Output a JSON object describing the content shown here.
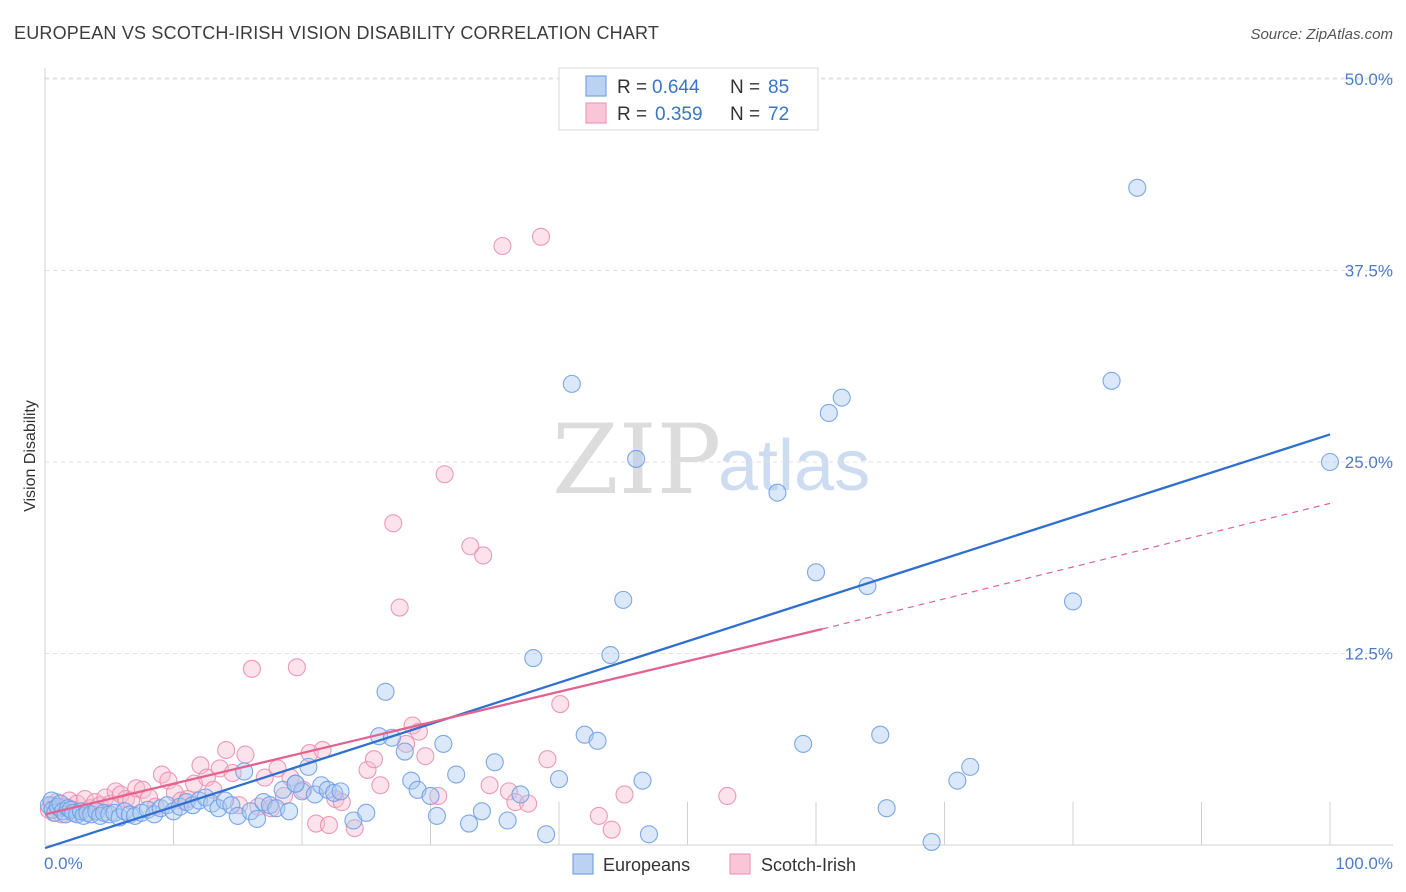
{
  "chart_data": {
    "type": "scatter",
    "title": "EUROPEAN VS SCOTCH-IRISH VISION DISABILITY CORRELATION CHART",
    "source": "Source: ZipAtlas.com",
    "ylabel": "Vision Disability",
    "xlim": [
      0,
      100
    ],
    "ylim": [
      0,
      50
    ],
    "y_ticks": [
      12.5,
      25.0,
      37.5,
      50.0
    ],
    "y_tick_labels": [
      "12.5%",
      "25.0%",
      "37.5%",
      "50.0%"
    ],
    "x_tick_labels": [
      "0.0%",
      "100.0%"
    ],
    "grid": true,
    "legend_position": "top-center",
    "watermark": {
      "zip": "ZIP",
      "atlas": "atlas"
    },
    "series": [
      {
        "name": "Europeans",
        "color": "#6f9fe6",
        "line_color": "#2f6fcf",
        "stats": {
          "r_label": "R =",
          "r_value": "0.644",
          "n_label": "N =",
          "n_value": "85"
        },
        "trend": {
          "x": [
            0,
            100
          ],
          "y": [
            -0.2,
            26.8
          ],
          "extrapolated": false
        },
        "points": [
          [
            0.3,
            2.6
          ],
          [
            0.5,
            2.9
          ],
          [
            0.6,
            2.3
          ],
          [
            0.8,
            2.1
          ],
          [
            1.0,
            2.5
          ],
          [
            1.2,
            2.7
          ],
          [
            1.4,
            2.2
          ],
          [
            1.6,
            2.0
          ],
          [
            1.8,
            2.4
          ],
          [
            2.0,
            2.3
          ],
          [
            2.2,
            2.1
          ],
          [
            2.5,
            2.0
          ],
          [
            2.8,
            2.2
          ],
          [
            3.0,
            1.9
          ],
          [
            3.3,
            2.1
          ],
          [
            3.6,
            2.0
          ],
          [
            4.0,
            2.2
          ],
          [
            4.3,
            1.9
          ],
          [
            4.6,
            2.1
          ],
          [
            5.0,
            2.0
          ],
          [
            5.4,
            2.1
          ],
          [
            5.8,
            1.8
          ],
          [
            6.2,
            2.2
          ],
          [
            6.6,
            2.0
          ],
          [
            7.0,
            1.9
          ],
          [
            7.5,
            2.1
          ],
          [
            8.0,
            2.3
          ],
          [
            8.5,
            2.0
          ],
          [
            9.0,
            2.4
          ],
          [
            9.5,
            2.6
          ],
          [
            10,
            2.2
          ],
          [
            10.5,
            2.5
          ],
          [
            11,
            2.8
          ],
          [
            11.5,
            2.6
          ],
          [
            12,
            2.9
          ],
          [
            12.5,
            3.1
          ],
          [
            13,
            2.7
          ],
          [
            13.5,
            2.4
          ],
          [
            14,
            2.9
          ],
          [
            14.5,
            2.6
          ],
          [
            15,
            1.9
          ],
          [
            15.5,
            4.8
          ],
          [
            16,
            2.2
          ],
          [
            16.5,
            1.7
          ],
          [
            17,
            2.8
          ],
          [
            17.5,
            2.6
          ],
          [
            18,
            2.4
          ],
          [
            18.5,
            3.6
          ],
          [
            19,
            2.2
          ],
          [
            19.5,
            4.0
          ],
          [
            20,
            3.5
          ],
          [
            20.5,
            5.1
          ],
          [
            21,
            3.3
          ],
          [
            21.5,
            3.9
          ],
          [
            22,
            3.6
          ],
          [
            22.5,
            3.4
          ],
          [
            23,
            3.5
          ],
          [
            24,
            1.6
          ],
          [
            25,
            2.1
          ],
          [
            19.5,
            4.0
          ],
          [
            26,
            7.1
          ],
          [
            26.5,
            10.0
          ],
          [
            27,
            7.0
          ],
          [
            28,
            6.1
          ],
          [
            28.5,
            4.2
          ],
          [
            29,
            3.6
          ],
          [
            30,
            3.2
          ],
          [
            30.5,
            1.9
          ],
          [
            31,
            6.6
          ],
          [
            32,
            4.6
          ],
          [
            33,
            1.4
          ],
          [
            34,
            2.2
          ],
          [
            35,
            5.4
          ],
          [
            36,
            1.6
          ],
          [
            37,
            3.3
          ],
          [
            38,
            12.2
          ],
          [
            39,
            0.7
          ],
          [
            40,
            4.3
          ],
          [
            41,
            30.1
          ],
          [
            42,
            7.2
          ],
          [
            43,
            6.8
          ],
          [
            44,
            12.4
          ],
          [
            45,
            16.0
          ],
          [
            46,
            25.2
          ],
          [
            46.5,
            4.2
          ],
          [
            47,
            0.7
          ],
          [
            57,
            23.0
          ],
          [
            59,
            6.6
          ],
          [
            60,
            17.8
          ],
          [
            61,
            28.2
          ],
          [
            62,
            29.2
          ],
          [
            64,
            16.9
          ],
          [
            65,
            7.2
          ],
          [
            65.5,
            2.4
          ],
          [
            69,
            0.2
          ],
          [
            71,
            4.2
          ],
          [
            72,
            5.1
          ],
          [
            80,
            15.9
          ],
          [
            83,
            30.3
          ],
          [
            85,
            42.9
          ],
          [
            100,
            25.0
          ]
        ]
      },
      {
        "name": "Scotch-Irish",
        "color": "#f2a0bd",
        "line_color": "#e2648e",
        "stats": {
          "r_label": "R =",
          "r_value": "0.359",
          "n_label": "N =",
          "n_value": "72"
        },
        "trend": {
          "x": [
            0,
            60.5
          ],
          "y": [
            2.0,
            14.1
          ],
          "extrapolated_to": [
            100,
            22.3
          ]
        },
        "points": [
          [
            0.3,
            2.3
          ],
          [
            0.5,
            2.6
          ],
          [
            0.7,
            2.1
          ],
          [
            0.9,
            2.8
          ],
          [
            1.1,
            2.4
          ],
          [
            1.3,
            2.0
          ],
          [
            1.6,
            2.5
          ],
          [
            1.9,
            2.9
          ],
          [
            2.2,
            2.3
          ],
          [
            2.5,
            2.7
          ],
          [
            2.8,
            2.2
          ],
          [
            3.1,
            3.0
          ],
          [
            3.5,
            2.4
          ],
          [
            3.9,
            2.8
          ],
          [
            4.3,
            2.6
          ],
          [
            4.7,
            3.1
          ],
          [
            5.1,
            2.7
          ],
          [
            5.5,
            3.5
          ],
          [
            5.9,
            3.3
          ],
          [
            6.3,
            3.0
          ],
          [
            6.7,
            2.9
          ],
          [
            7.1,
            3.7
          ],
          [
            7.6,
            3.6
          ],
          [
            8.1,
            3.1
          ],
          [
            8.6,
            2.5
          ],
          [
            9.1,
            4.6
          ],
          [
            9.6,
            4.2
          ],
          [
            10.1,
            3.4
          ],
          [
            10.6,
            2.9
          ],
          [
            11.1,
            3.0
          ],
          [
            11.6,
            4.0
          ],
          [
            12.1,
            5.2
          ],
          [
            12.6,
            4.4
          ],
          [
            13.1,
            3.6
          ],
          [
            13.6,
            5.0
          ],
          [
            14.1,
            6.2
          ],
          [
            14.6,
            4.7
          ],
          [
            15.1,
            2.6
          ],
          [
            15.6,
            5.9
          ],
          [
            16.1,
            11.5
          ],
          [
            16.6,
            2.5
          ],
          [
            17.1,
            4.4
          ],
          [
            17.6,
            2.4
          ],
          [
            18.1,
            5.0
          ],
          [
            18.6,
            3.2
          ],
          [
            19.1,
            4.4
          ],
          [
            19.6,
            11.6
          ],
          [
            20.1,
            3.6
          ],
          [
            20.6,
            6.0
          ],
          [
            21.1,
            1.4
          ],
          [
            21.6,
            6.2
          ],
          [
            22.1,
            1.3
          ],
          [
            22.6,
            3.0
          ],
          [
            23.1,
            2.8
          ],
          [
            24.1,
            1.1
          ],
          [
            25.1,
            4.9
          ],
          [
            25.6,
            5.6
          ],
          [
            26.1,
            3.9
          ],
          [
            27.1,
            21.0
          ],
          [
            27.6,
            15.5
          ],
          [
            28.1,
            6.6
          ],
          [
            28.6,
            7.8
          ],
          [
            29.1,
            7.4
          ],
          [
            29.6,
            5.8
          ],
          [
            30.6,
            3.2
          ],
          [
            31.1,
            24.2
          ],
          [
            33.1,
            19.5
          ],
          [
            34.1,
            18.9
          ],
          [
            34.6,
            3.9
          ],
          [
            35.6,
            39.1
          ],
          [
            36.1,
            3.5
          ],
          [
            36.6,
            2.8
          ],
          [
            37.6,
            2.7
          ],
          [
            38.6,
            39.7
          ],
          [
            39.1,
            5.6
          ],
          [
            40.1,
            9.2
          ],
          [
            43.1,
            1.9
          ],
          [
            44.1,
            1.0
          ],
          [
            45.1,
            3.3
          ],
          [
            53.1,
            3.2
          ]
        ]
      }
    ]
  }
}
